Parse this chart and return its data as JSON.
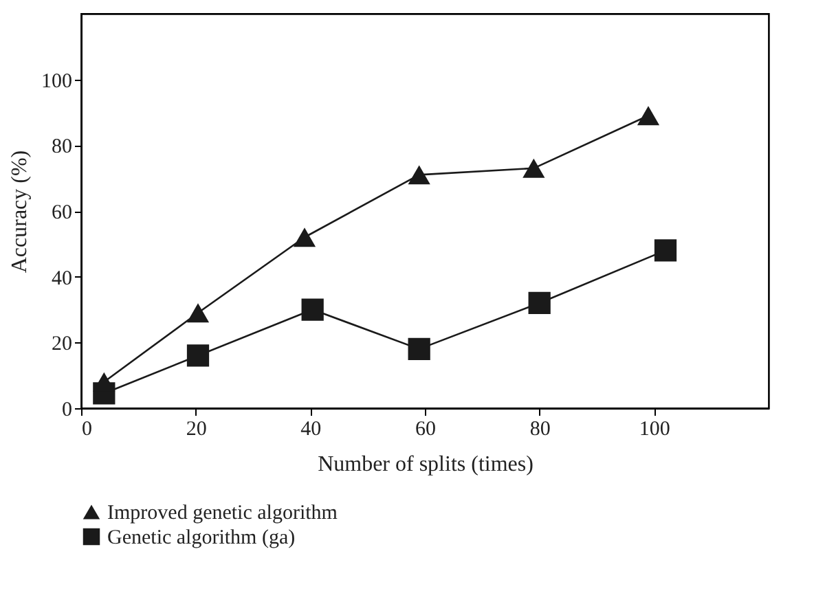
{
  "chart_data": {
    "type": "line",
    "xlabel": "Number of splits (times)",
    "ylabel": "Accuracy (%)",
    "xlim": [
      0,
      120
    ],
    "xticks": [
      0,
      20,
      40,
      60,
      80,
      100
    ],
    "ylim": [
      0,
      120
    ],
    "yticks": [
      0,
      20,
      40,
      60,
      80,
      100
    ],
    "grid": false,
    "legend": "bottom",
    "line_style": "solid",
    "series": [
      {
        "name": "Improved genetic algorithm",
        "color": "#1a1a1a",
        "marker": "triangle",
        "x": [
          4,
          20.4,
          39,
          59,
          79,
          99
        ],
        "values": [
          8,
          29,
          52,
          71,
          73,
          89
        ]
      },
      {
        "name": "Genetic algorithm (ga)",
        "color": "#1a1a1a",
        "marker": "square",
        "x": [
          4,
          20.4,
          40.4,
          59,
          80,
          102
        ],
        "values": [
          4.5,
          16,
          30,
          18,
          32,
          48
        ]
      }
    ]
  }
}
